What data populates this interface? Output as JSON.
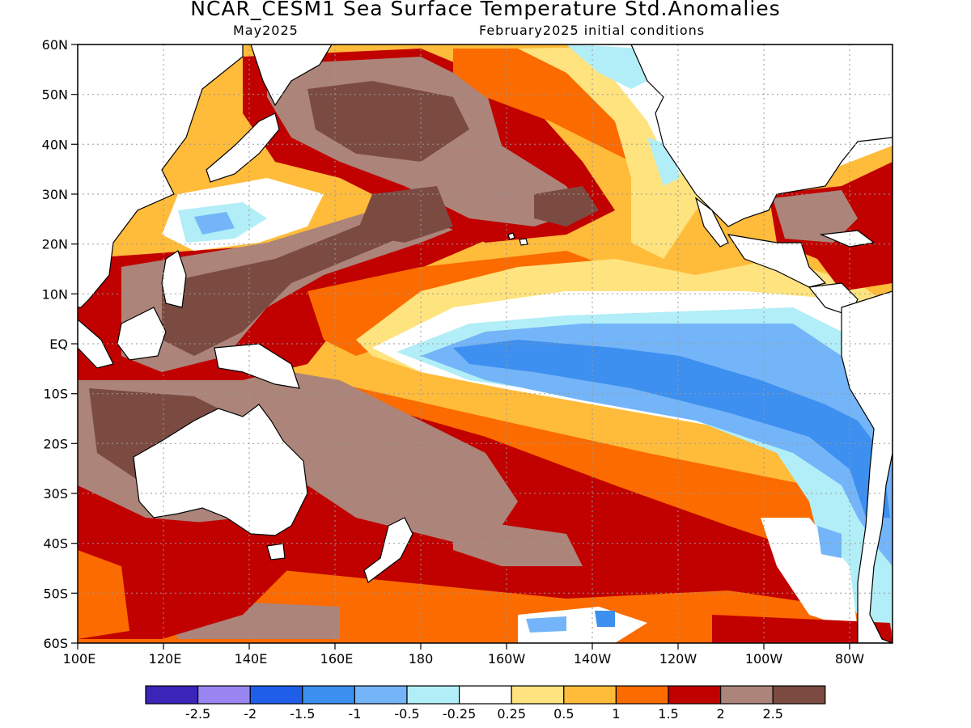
{
  "title": "NCAR_CESM1 Sea Surface Temperature Std.Anomalies",
  "valid_month": "May2025",
  "init_conditions": "February2025 initial conditions",
  "lat_labels": [
    "60N",
    "50N",
    "40N",
    "30N",
    "20N",
    "10N",
    "EQ",
    "10S",
    "20S",
    "30S",
    "40S",
    "50S",
    "60S"
  ],
  "lon_labels": [
    "100E",
    "120E",
    "140E",
    "160E",
    "180",
    "160W",
    "140W",
    "120W",
    "100W",
    "80W"
  ],
  "legend": {
    "bins": [
      {
        "color": "#3b24b8"
      },
      {
        "color": "#9a86f2"
      },
      {
        "color": "#1f5ee8"
      },
      {
        "color": "#3d8ff0"
      },
      {
        "color": "#73b5f8"
      },
      {
        "color": "#b2eef7"
      },
      {
        "color": "#ffffff"
      },
      {
        "color": "#ffe37f"
      },
      {
        "color": "#ffbb3a"
      },
      {
        "color": "#fb6b00"
      },
      {
        "color": "#c10000"
      },
      {
        "color": "#ac847a"
      },
      {
        "color": "#7b4b42"
      }
    ],
    "tick_labels": [
      "-2.5",
      "-2",
      "-1.5",
      "-1",
      "-0.5",
      "-0.25",
      "0.25",
      "0.5",
      "1",
      "1.5",
      "2",
      "2.5"
    ]
  },
  "map_extent": {
    "lon_min": 100,
    "lon_max": 290,
    "lat_min": -60,
    "lat_max": 60
  }
}
